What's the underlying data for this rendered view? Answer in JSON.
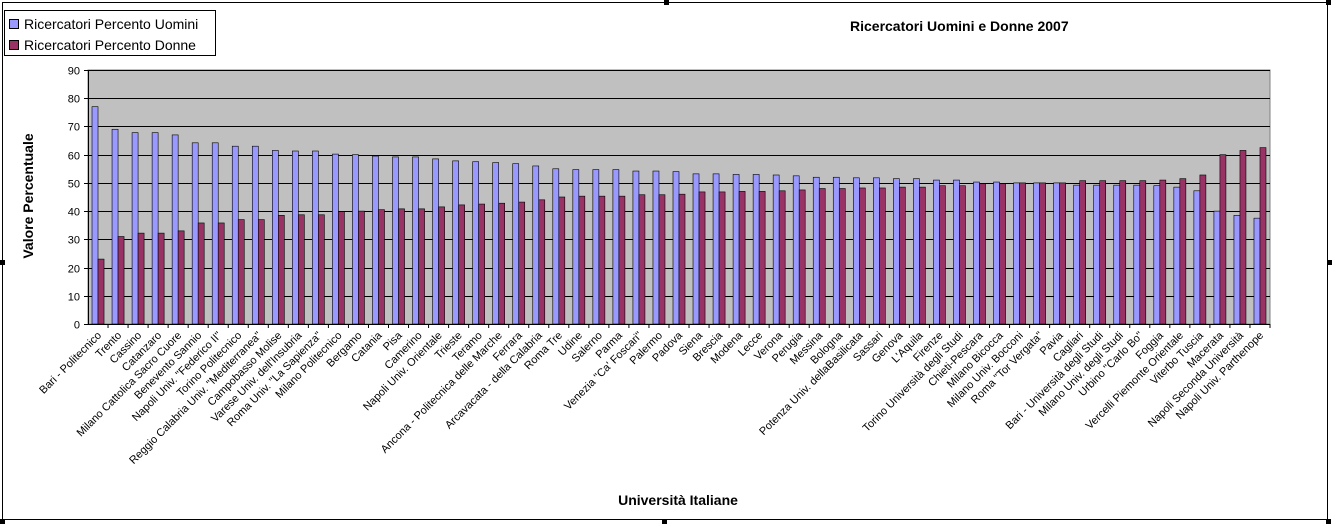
{
  "chart_data": {
    "type": "bar",
    "title": "Ricercatori Uomini e Donne 2007",
    "xlabel": "Università Italiane",
    "ylabel": "Valore Percentuale",
    "ylim": [
      0,
      90
    ],
    "yticks": [
      "0",
      "10",
      "20",
      "30",
      "40",
      "50",
      "60",
      "70",
      "80",
      "90"
    ],
    "grid": true,
    "legend_position": "top-left",
    "categories": [
      "Bari - Politecnico",
      "Trento",
      "Cassino",
      "Catanzaro",
      "Milano Cattolica Sacro Cuore",
      "Benevento Sannio",
      "Napoli Univ. \"Federico II\"",
      "Torino Politecnico",
      "Reggio Calabria Univ. \"Mediterranea\"",
      "Campobasso Molise",
      "Varese Univ. dell'Insubria",
      "Roma Univ. \"La Sapienza\"",
      "Milano Politecnico",
      "Bergamo",
      "Catania",
      "Pisa",
      "Camerino",
      "Napoli Univ. Orientale",
      "Trieste",
      "Teramo",
      "Ancona - Politecnica delle Marche",
      "Ferrara",
      "Arcavacata - della Calabria",
      "Roma Tre",
      "Udine",
      "Salerno",
      "Parma",
      "Venezia \"Ca' Foscari\"",
      "Palermo",
      "Padova",
      "Siena",
      "Brescia",
      "Modena",
      "Lecce",
      "Verona",
      "Perugia",
      "Messina",
      "Bologna",
      "Potenza Univ. dellaBasilicata",
      "Sassari",
      "Genova",
      "L'Aquila",
      "Firenze",
      "Torino Università degli Studi",
      "Chieti-Pescara",
      "Milano Bicocca",
      "Milano Univ. Bocconi",
      "Roma \"Tor Vergata\"",
      "Pavia",
      "Cagliari",
      "Bari - Università degli Studi",
      "Milano Univ. degli Studi",
      "Urbino \"Carlo Bo\"",
      "Foggia",
      "Vercelli Piemonte Orientale",
      "Viterbo Tuscia",
      "Macerata",
      "Napoli Seconda Università",
      "Napoli Univ. Parthenope"
    ],
    "series": [
      {
        "name": "Ricercatori Percento Uomini",
        "color": "#9999ff",
        "values": [
          77,
          69,
          67.8,
          67.8,
          67,
          64.2,
          64.2,
          63,
          63,
          61.5,
          61.3,
          61.3,
          60.2,
          60,
          59.5,
          59.2,
          59.2,
          58.5,
          57.8,
          57.5,
          57.2,
          56.8,
          56,
          55,
          54.7,
          54.7,
          54.7,
          54.2,
          54.2,
          54,
          53.2,
          53.2,
          53,
          53,
          52.8,
          52.5,
          52,
          52,
          51.8,
          51.8,
          51.5,
          51.5,
          51,
          51,
          50.3,
          50.3,
          50,
          50,
          50,
          49.2,
          49.2,
          49.2,
          49.2,
          49,
          48.5,
          47.2,
          40,
          38.5,
          37.5
        ]
      },
      {
        "name": "Ricercatori Percento Donne",
        "color": "#993366",
        "values": [
          23,
          31,
          32.2,
          32.2,
          33,
          35.8,
          35.8,
          37,
          37,
          38.5,
          38.7,
          38.7,
          39.8,
          40,
          40.5,
          40.8,
          40.8,
          41.5,
          42.2,
          42.5,
          42.8,
          43.2,
          44,
          45,
          45.3,
          45.3,
          45.3,
          45.8,
          45.8,
          46,
          46.8,
          46.8,
          47,
          47,
          47.2,
          47.5,
          48,
          48,
          48.2,
          48.2,
          48.5,
          48.5,
          49,
          49,
          49.7,
          49.7,
          50,
          50,
          50,
          50.8,
          50.8,
          50.8,
          50.8,
          51,
          51.5,
          52.8,
          60,
          61.5,
          62.5
        ]
      }
    ]
  },
  "colors": {
    "plot_background": "#c0c0c0",
    "gridline": "#000000",
    "frame": "#000000"
  }
}
